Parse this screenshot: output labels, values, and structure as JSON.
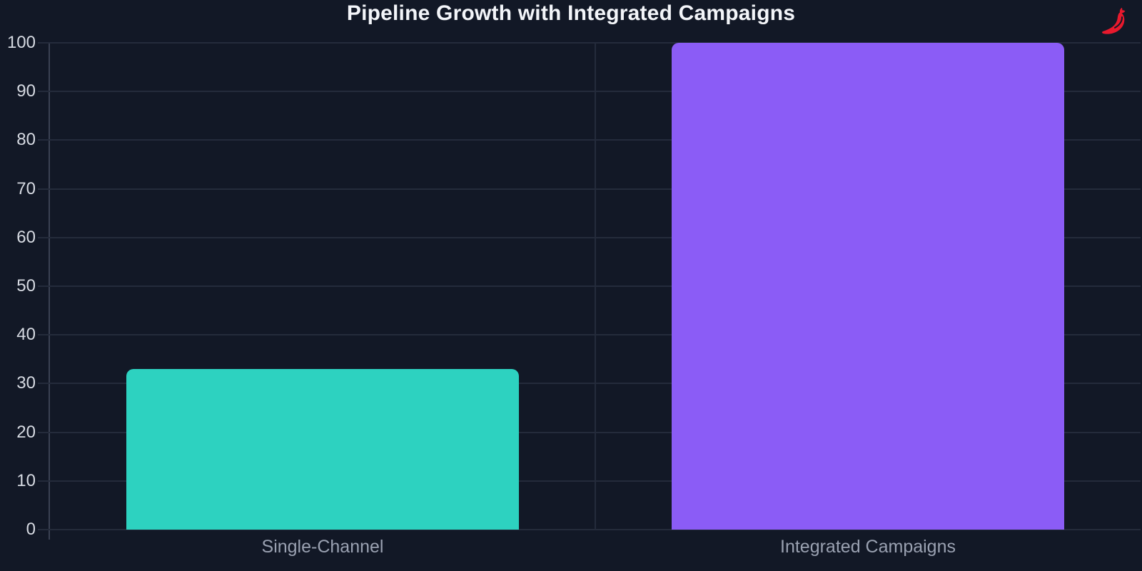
{
  "branding": {
    "icon": "chili-pepper-icon",
    "color": "#e8192d"
  },
  "theme": {
    "background": "#121826",
    "grid_color": "#242b3b",
    "axis_color": "#3a4152",
    "y_label_color": "#d6dae2",
    "x_label_color": "#9aa1b1",
    "title_color": "#f3f5f9"
  },
  "chart_data": {
    "type": "bar",
    "title": "Pipeline Growth with Integrated Campaigns",
    "categories": [
      "Single-Channel",
      "Integrated Campaigns"
    ],
    "values": [
      33,
      100
    ],
    "bar_colors": [
      "#2dd2c0",
      "#8b5cf6"
    ],
    "xlabel": "",
    "ylabel": "",
    "ylim": [
      0,
      100
    ],
    "yticks": [
      0,
      10,
      20,
      30,
      40,
      50,
      60,
      70,
      80,
      90,
      100
    ],
    "grid": true,
    "legend": false
  }
}
